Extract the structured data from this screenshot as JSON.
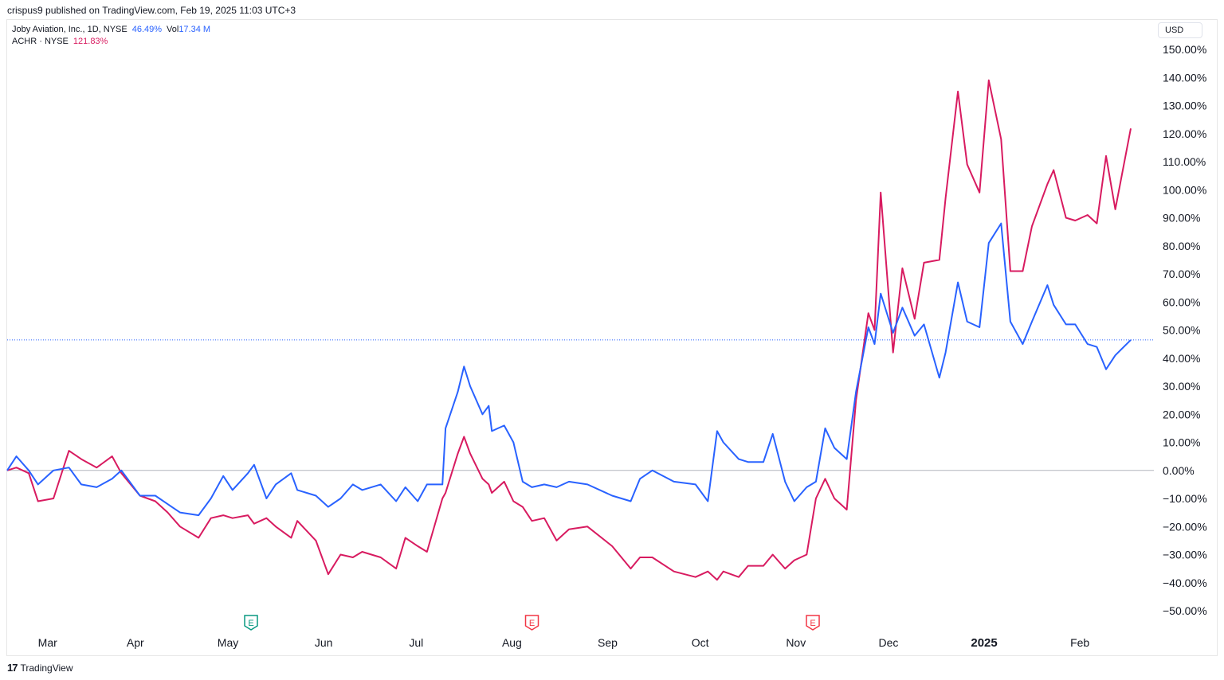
{
  "header": {
    "publish_text": "crispus9 published on TradingView.com, Feb 19, 2025 11:03 UTC+3"
  },
  "legend": {
    "joby_name": "Joby Aviation, Inc., 1D, NYSE",
    "joby_value": "46.49%",
    "vol_label": "Vol",
    "vol_value": "17.34 M",
    "achr_name": "ACHR · NYSE",
    "achr_value": "121.83%"
  },
  "currency": "USD",
  "footer": {
    "brand": "TradingView",
    "mark": "17"
  },
  "colors": {
    "joby": "#2962ff",
    "achr": "#d81b60",
    "earnings_green": "#089981",
    "earnings_red": "#f23645"
  },
  "chart_data": {
    "type": "line",
    "title": "",
    "x_ticks": [
      "Mar",
      "Apr",
      "May",
      "Jun",
      "Jul",
      "Aug",
      "Sep",
      "Oct",
      "Nov",
      "Dec",
      "2025",
      "Feb"
    ],
    "y_ticks": [
      "150.00%",
      "140.00%",
      "130.00%",
      "120.00%",
      "110.00%",
      "100.00%",
      "90.00%",
      "80.00%",
      "70.00%",
      "60.00%",
      "50.00%",
      "40.00%",
      "30.00%",
      "20.00%",
      "10.00%",
      "0.00%",
      "−10.00%",
      "−20.00%",
      "−30.00%",
      "−40.00%",
      "−50.00%"
    ],
    "ylim": [
      -50,
      150
    ],
    "current_value_line": 46.49,
    "earnings_markers": [
      {
        "label": "E",
        "date": "2024-05-09",
        "color": "green"
      },
      {
        "label": "E",
        "date": "2024-08-08",
        "color": "red"
      },
      {
        "label": "E",
        "date": "2024-11-07",
        "color": "red"
      }
    ],
    "series": [
      {
        "name": "Joby Aviation, Inc., 1D, NYSE",
        "points": [
          [
            "2024-02-20",
            0
          ],
          [
            "2024-02-23",
            5
          ],
          [
            "2024-02-27",
            0
          ],
          [
            "2024-03-01",
            -5
          ],
          [
            "2024-03-06",
            0
          ],
          [
            "2024-03-11",
            1
          ],
          [
            "2024-03-15",
            -5
          ],
          [
            "2024-03-20",
            -6
          ],
          [
            "2024-03-25",
            -3
          ],
          [
            "2024-03-28",
            0
          ],
          [
            "2024-04-03",
            -9
          ],
          [
            "2024-04-08",
            -9
          ],
          [
            "2024-04-12",
            -12
          ],
          [
            "2024-04-16",
            -15
          ],
          [
            "2024-04-22",
            -16
          ],
          [
            "2024-04-26",
            -10
          ],
          [
            "2024-04-30",
            -2
          ],
          [
            "2024-05-03",
            -7
          ],
          [
            "2024-05-08",
            -1
          ],
          [
            "2024-05-10",
            2
          ],
          [
            "2024-05-14",
            -10
          ],
          [
            "2024-05-17",
            -5
          ],
          [
            "2024-05-22",
            -1
          ],
          [
            "2024-05-24",
            -7
          ],
          [
            "2024-05-30",
            -9
          ],
          [
            "2024-06-03",
            -13
          ],
          [
            "2024-06-07",
            -10
          ],
          [
            "2024-06-11",
            -5
          ],
          [
            "2024-06-14",
            -7
          ],
          [
            "2024-06-20",
            -5
          ],
          [
            "2024-06-25",
            -11
          ],
          [
            "2024-06-28",
            -6
          ],
          [
            "2024-07-02",
            -11
          ],
          [
            "2024-07-05",
            -5
          ],
          [
            "2024-07-10",
            -5
          ],
          [
            "2024-07-11",
            15
          ],
          [
            "2024-07-15",
            28
          ],
          [
            "2024-07-17",
            37
          ],
          [
            "2024-07-19",
            30
          ],
          [
            "2024-07-23",
            20
          ],
          [
            "2024-07-25",
            23
          ],
          [
            "2024-07-26",
            14
          ],
          [
            "2024-07-30",
            16
          ],
          [
            "2024-08-02",
            10
          ],
          [
            "2024-08-05",
            -4
          ],
          [
            "2024-08-08",
            -6
          ],
          [
            "2024-08-12",
            -5
          ],
          [
            "2024-08-16",
            -6
          ],
          [
            "2024-08-20",
            -4
          ],
          [
            "2024-08-26",
            -5
          ],
          [
            "2024-09-03",
            -9
          ],
          [
            "2024-09-09",
            -11
          ],
          [
            "2024-09-12",
            -3
          ],
          [
            "2024-09-16",
            0
          ],
          [
            "2024-09-23",
            -4
          ],
          [
            "2024-09-30",
            -5
          ],
          [
            "2024-10-04",
            -11
          ],
          [
            "2024-10-07",
            14
          ],
          [
            "2024-10-09",
            10
          ],
          [
            "2024-10-14",
            4
          ],
          [
            "2024-10-17",
            3
          ],
          [
            "2024-10-22",
            3
          ],
          [
            "2024-10-25",
            13
          ],
          [
            "2024-10-29",
            -4
          ],
          [
            "2024-11-01",
            -11
          ],
          [
            "2024-11-05",
            -6
          ],
          [
            "2024-11-08",
            -4
          ],
          [
            "2024-11-11",
            15
          ],
          [
            "2024-11-14",
            8
          ],
          [
            "2024-11-18",
            4
          ],
          [
            "2024-11-21",
            28
          ],
          [
            "2024-11-25",
            51
          ],
          [
            "2024-11-27",
            45
          ],
          [
            "2024-11-29",
            63
          ],
          [
            "2024-12-03",
            49
          ],
          [
            "2024-12-06",
            58
          ],
          [
            "2024-12-10",
            48
          ],
          [
            "2024-12-13",
            52
          ],
          [
            "2024-12-18",
            33
          ],
          [
            "2024-12-20",
            42
          ],
          [
            "2024-12-24",
            67
          ],
          [
            "2024-12-27",
            53
          ],
          [
            "2024-12-31",
            51
          ],
          [
            "2025-01-03",
            81
          ],
          [
            "2025-01-07",
            88
          ],
          [
            "2025-01-10",
            53
          ],
          [
            "2025-01-14",
            45
          ],
          [
            "2025-01-17",
            53
          ],
          [
            "2025-01-22",
            66
          ],
          [
            "2025-01-24",
            59
          ],
          [
            "2025-01-28",
            52
          ],
          [
            "2025-01-31",
            52
          ],
          [
            "2025-02-04",
            45
          ],
          [
            "2025-02-07",
            44
          ],
          [
            "2025-02-10",
            36
          ],
          [
            "2025-02-13",
            41
          ],
          [
            "2025-02-18",
            46.49
          ]
        ]
      },
      {
        "name": "ACHR · NYSE",
        "points": [
          [
            "2024-02-20",
            0
          ],
          [
            "2024-02-23",
            1
          ],
          [
            "2024-02-27",
            -1
          ],
          [
            "2024-03-01",
            -11
          ],
          [
            "2024-03-06",
            -10
          ],
          [
            "2024-03-11",
            7
          ],
          [
            "2024-03-15",
            4
          ],
          [
            "2024-03-20",
            1
          ],
          [
            "2024-03-25",
            5
          ],
          [
            "2024-03-28",
            -1
          ],
          [
            "2024-04-03",
            -9
          ],
          [
            "2024-04-08",
            -11
          ],
          [
            "2024-04-12",
            -15
          ],
          [
            "2024-04-16",
            -20
          ],
          [
            "2024-04-22",
            -24
          ],
          [
            "2024-04-26",
            -17
          ],
          [
            "2024-04-30",
            -16
          ],
          [
            "2024-05-03",
            -17
          ],
          [
            "2024-05-08",
            -16
          ],
          [
            "2024-05-10",
            -19
          ],
          [
            "2024-05-14",
            -17
          ],
          [
            "2024-05-17",
            -20
          ],
          [
            "2024-05-22",
            -24
          ],
          [
            "2024-05-24",
            -18
          ],
          [
            "2024-05-30",
            -25
          ],
          [
            "2024-06-03",
            -37
          ],
          [
            "2024-06-07",
            -30
          ],
          [
            "2024-06-11",
            -31
          ],
          [
            "2024-06-14",
            -29
          ],
          [
            "2024-06-20",
            -31
          ],
          [
            "2024-06-25",
            -35
          ],
          [
            "2024-06-28",
            -24
          ],
          [
            "2024-07-02",
            -27
          ],
          [
            "2024-07-05",
            -29
          ],
          [
            "2024-07-10",
            -10
          ],
          [
            "2024-07-11",
            -8
          ],
          [
            "2024-07-15",
            6
          ],
          [
            "2024-07-17",
            12
          ],
          [
            "2024-07-19",
            6
          ],
          [
            "2024-07-23",
            -3
          ],
          [
            "2024-07-25",
            -5
          ],
          [
            "2024-07-26",
            -8
          ],
          [
            "2024-07-30",
            -4
          ],
          [
            "2024-08-02",
            -11
          ],
          [
            "2024-08-05",
            -13
          ],
          [
            "2024-08-08",
            -18
          ],
          [
            "2024-08-12",
            -17
          ],
          [
            "2024-08-16",
            -25
          ],
          [
            "2024-08-20",
            -21
          ],
          [
            "2024-08-26",
            -20
          ],
          [
            "2024-09-03",
            -27
          ],
          [
            "2024-09-09",
            -35
          ],
          [
            "2024-09-12",
            -31
          ],
          [
            "2024-09-16",
            -31
          ],
          [
            "2024-09-23",
            -36
          ],
          [
            "2024-09-30",
            -38
          ],
          [
            "2024-10-04",
            -36
          ],
          [
            "2024-10-07",
            -39
          ],
          [
            "2024-10-09",
            -36
          ],
          [
            "2024-10-14",
            -38
          ],
          [
            "2024-10-17",
            -34
          ],
          [
            "2024-10-22",
            -34
          ],
          [
            "2024-10-25",
            -30
          ],
          [
            "2024-10-29",
            -35
          ],
          [
            "2024-11-01",
            -32
          ],
          [
            "2024-11-05",
            -30
          ],
          [
            "2024-11-08",
            -10
          ],
          [
            "2024-11-11",
            -3
          ],
          [
            "2024-11-14",
            -10
          ],
          [
            "2024-11-18",
            -14
          ],
          [
            "2024-11-21",
            25
          ],
          [
            "2024-11-25",
            56
          ],
          [
            "2024-11-27",
            50
          ],
          [
            "2024-11-29",
            99
          ],
          [
            "2024-12-03",
            42
          ],
          [
            "2024-12-06",
            72
          ],
          [
            "2024-12-10",
            54
          ],
          [
            "2024-12-13",
            74
          ],
          [
            "2024-12-18",
            75
          ],
          [
            "2024-12-20",
            97
          ],
          [
            "2024-12-24",
            135
          ],
          [
            "2024-12-27",
            109
          ],
          [
            "2024-12-31",
            99
          ],
          [
            "2025-01-03",
            139
          ],
          [
            "2025-01-07",
            118
          ],
          [
            "2025-01-10",
            71
          ],
          [
            "2025-01-14",
            71
          ],
          [
            "2025-01-17",
            87
          ],
          [
            "2025-01-22",
            102
          ],
          [
            "2025-01-24",
            107
          ],
          [
            "2025-01-28",
            90
          ],
          [
            "2025-01-31",
            89
          ],
          [
            "2025-02-04",
            91
          ],
          [
            "2025-02-07",
            88
          ],
          [
            "2025-02-10",
            112
          ],
          [
            "2025-02-13",
            93
          ],
          [
            "2025-02-18",
            121.83
          ]
        ]
      }
    ]
  }
}
